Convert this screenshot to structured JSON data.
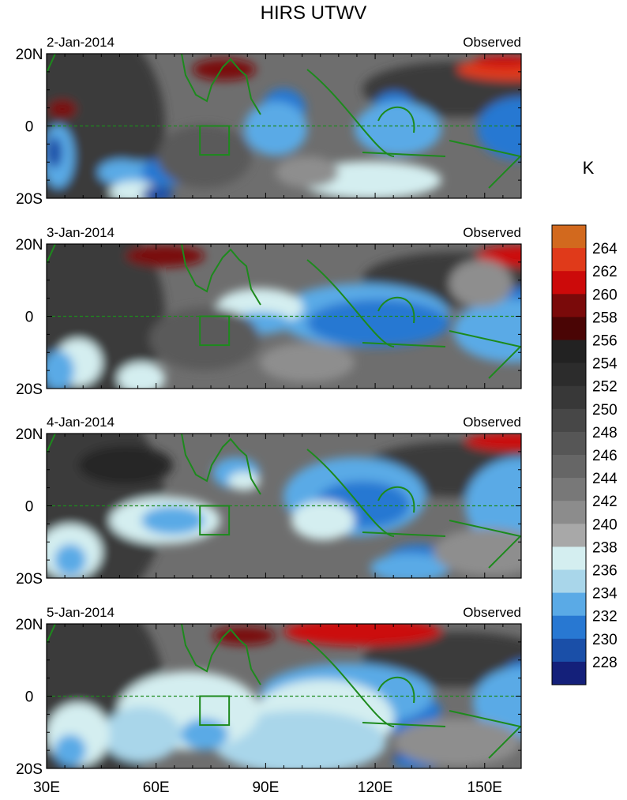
{
  "title": "HIRS UTWV",
  "axes": {
    "y_ticks": [
      "20N",
      "0",
      "20S"
    ],
    "x_ticks": [
      "30E",
      "60E",
      "90E",
      "120E",
      "150E"
    ]
  },
  "colorbar": {
    "unit": "K",
    "levels": [
      "264",
      "262",
      "260",
      "258",
      "256",
      "254",
      "252",
      "250",
      "248",
      "246",
      "244",
      "242",
      "240",
      "238",
      "236",
      "234",
      "232",
      "230",
      "228"
    ],
    "colors": [
      "#d2691e",
      "#e03a1a",
      "#cc0a0a",
      "#7a0a0a",
      "#4a0505",
      "#222222",
      "#2c2c2c",
      "#383838",
      "#474747",
      "#565656",
      "#666666",
      "#787878",
      "#8c8c8c",
      "#a8a8a8",
      "#d4eef0",
      "#a9d6ea",
      "#5aaae6",
      "#2878d2",
      "#1a4fa8",
      "#14207a"
    ]
  },
  "panels": [
    {
      "date": "2-Jan-2014",
      "run_label": "Observed"
    },
    {
      "date": "3-Jan-2014",
      "run_label": "Observed"
    },
    {
      "date": "4-Jan-2014",
      "run_label": "Observed"
    },
    {
      "date": "5-Jan-2014",
      "run_label": "Observed"
    }
  ],
  "chart_data": {
    "type": "heatmap",
    "title": "HIRS UTWV",
    "xlabel": "",
    "ylabel": "",
    "xlim": [
      30,
      160
    ],
    "ylim": [
      -20,
      20
    ],
    "colorscale_unit": "K",
    "colorscale_range": [
      228,
      264
    ],
    "grid": false
  }
}
